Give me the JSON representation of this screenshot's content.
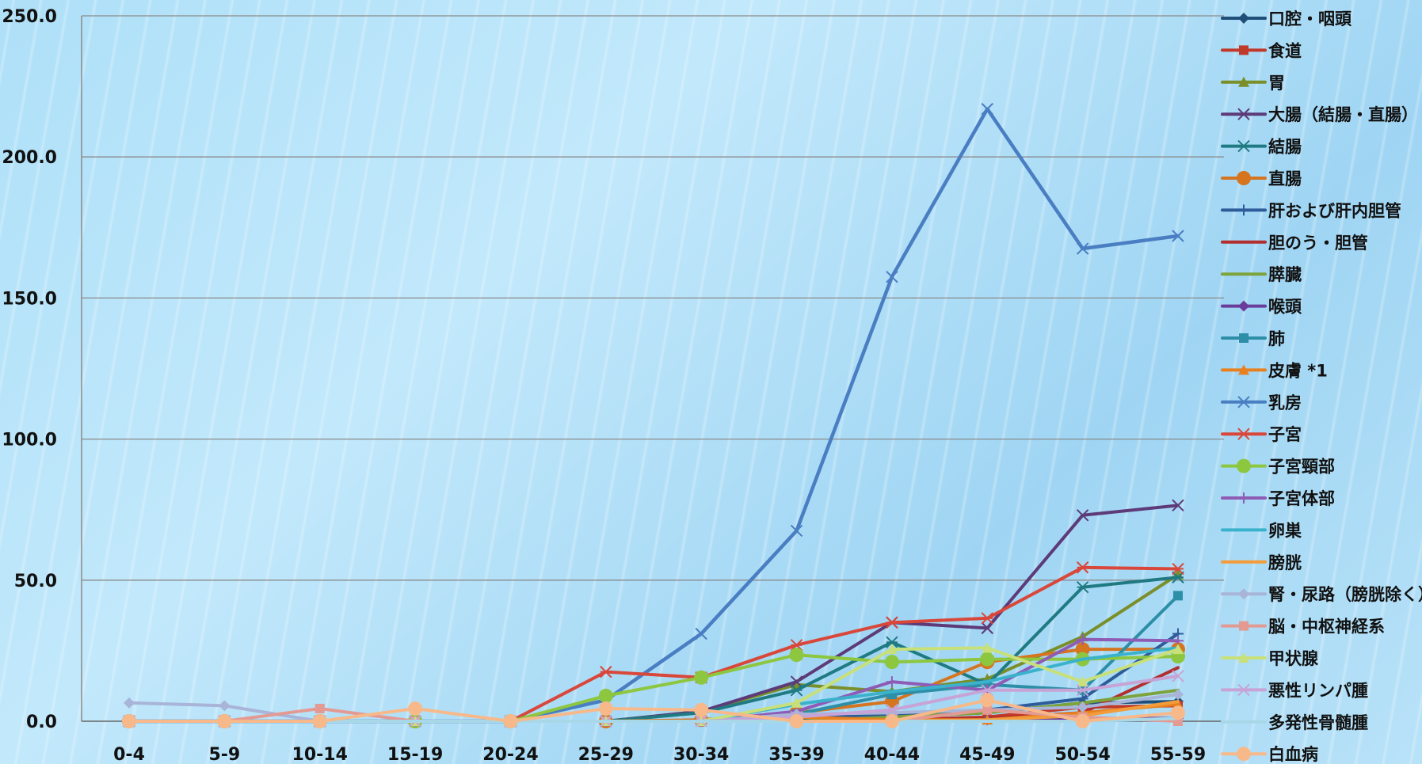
{
  "chart_data": {
    "type": "line",
    "title": "",
    "xlabel": "",
    "ylabel": "",
    "ylim": [
      0,
      250
    ],
    "yticks": [
      "0.0",
      "50.0",
      "100.0",
      "150.0",
      "200.0",
      "250.0"
    ],
    "grid": true,
    "legend_position": "right",
    "categories": [
      "0-4",
      "5-9",
      "10-14",
      "15-19",
      "20-24",
      "25-29",
      "30-34",
      "35-39",
      "40-44",
      "45-49",
      "50-54",
      "55-59"
    ],
    "series": [
      {
        "name": "口腔・咽頭",
        "color": "#1f4e79",
        "marker": "diamond",
        "values": [
          0,
          0,
          0,
          0,
          0,
          0,
          0,
          0.5,
          1.5,
          3,
          6.5,
          7
        ]
      },
      {
        "name": "食道",
        "color": "#c0392b",
        "marker": "square",
        "values": [
          0,
          0,
          0,
          0,
          0,
          0,
          0,
          0,
          0.5,
          1.5,
          5,
          5.5
        ]
      },
      {
        "name": "胃",
        "color": "#7a8f2a",
        "marker": "triangle",
        "values": [
          0,
          0,
          0,
          0,
          0,
          0,
          3.5,
          13,
          10.5,
          15,
          30,
          52
        ]
      },
      {
        "name": "大腸（結腸・直腸）",
        "color": "#5d3a78",
        "marker": "x",
        "values": [
          0,
          0,
          0,
          0,
          0,
          0,
          3.5,
          14,
          35,
          33,
          73,
          76.5
        ]
      },
      {
        "name": "結腸",
        "color": "#1f7a82",
        "marker": "star",
        "values": [
          0,
          0,
          0,
          0,
          0,
          0,
          3,
          11,
          28,
          13,
          47.5,
          51
        ]
      },
      {
        "name": "直腸",
        "color": "#d67520",
        "marker": "circle",
        "values": [
          0,
          0,
          0,
          0,
          0,
          0,
          0.5,
          3,
          7,
          21,
          25.5,
          25.5
        ]
      },
      {
        "name": "肝および肝内胆管",
        "color": "#2e5c9a",
        "marker": "plus",
        "values": [
          0,
          0,
          0,
          0,
          0,
          0,
          0,
          1.5,
          2,
          4,
          8,
          31
        ]
      },
      {
        "name": "胆のう・胆管",
        "color": "#b22f2f",
        "marker": "none",
        "values": [
          0,
          0,
          0,
          0,
          0,
          0,
          0,
          0,
          0.5,
          1,
          3,
          19
        ]
      },
      {
        "name": "膵臓",
        "color": "#7ea33c",
        "marker": "none",
        "values": [
          0,
          0,
          0,
          0,
          0,
          0,
          0,
          0,
          1.5,
          3,
          6.5,
          11
        ]
      },
      {
        "name": "喉頭",
        "color": "#6a3d9a",
        "marker": "diamond",
        "values": [
          0,
          0,
          0,
          0,
          0,
          0,
          0,
          0,
          0,
          0.5,
          1,
          1
        ]
      },
      {
        "name": "肺",
        "color": "#2d8fa7",
        "marker": "square",
        "values": [
          0,
          0,
          0,
          0,
          0,
          0,
          0,
          2.5,
          9.5,
          13,
          11,
          44.5
        ]
      },
      {
        "name": "皮膚 *1",
        "color": "#e8801f",
        "marker": "triangle",
        "values": [
          0,
          0,
          0,
          0,
          0,
          0,
          0,
          1.5,
          0.5,
          0.5,
          3,
          6
        ]
      },
      {
        "name": "乳房",
        "color": "#4a7ec2",
        "marker": "x",
        "values": [
          0,
          0,
          0,
          0,
          0,
          7.5,
          31,
          67.5,
          157.5,
          217,
          167.5,
          172
        ]
      },
      {
        "name": "子宮",
        "color": "#d9473a",
        "marker": "star",
        "values": [
          0,
          0,
          0,
          0,
          0,
          17.5,
          15.5,
          27,
          35,
          36.5,
          54.5,
          54
        ]
      },
      {
        "name": "子宮頸部",
        "color": "#8dc63f",
        "marker": "circle",
        "values": [
          0,
          0,
          0,
          0,
          0,
          9,
          15.5,
          23.5,
          21,
          22,
          22,
          23
        ]
      },
      {
        "name": "子宮体部",
        "color": "#8e5bb5",
        "marker": "plus",
        "values": [
          0,
          0,
          0,
          0,
          0,
          0,
          0,
          3.5,
          14,
          11,
          29,
          28.5
        ]
      },
      {
        "name": "卵巣",
        "color": "#3bb2cc",
        "marker": "none",
        "values": [
          0,
          0,
          0,
          0,
          0,
          0,
          0,
          6,
          10.5,
          14,
          22,
          26
        ]
      },
      {
        "name": "膀胱",
        "color": "#f39c3b",
        "marker": "none",
        "values": [
          0,
          0,
          0,
          0,
          0,
          0,
          0,
          0,
          0,
          0.5,
          2,
          7
        ]
      },
      {
        "name": "腎・尿路（膀胱除く）",
        "color": "#a8b4d8",
        "marker": "diamond",
        "values": [
          6.5,
          5.5,
          0,
          0,
          0,
          0,
          0,
          2.5,
          3,
          4,
          5,
          9.5
        ]
      },
      {
        "name": "脳・中枢神経系",
        "color": "#e39a93",
        "marker": "square",
        "values": [
          0,
          0,
          4.5,
          0,
          0,
          0,
          0,
          0,
          0,
          4,
          1.5,
          0
        ]
      },
      {
        "name": "甲状腺",
        "color": "#c8e07a",
        "marker": "triangle",
        "values": [
          0,
          0,
          0,
          0,
          0,
          0,
          0,
          6.5,
          25.5,
          26,
          14,
          25.5
        ]
      },
      {
        "name": "悪性リンパ腫",
        "color": "#c7a3d6",
        "marker": "x",
        "values": [
          0,
          0,
          0,
          0,
          0,
          0,
          0,
          1.5,
          4,
          11,
          11,
          16
        ]
      },
      {
        "name": "多発性骨髄腫",
        "color": "#a8d8e8",
        "marker": "none",
        "values": [
          0,
          0,
          0,
          0,
          0,
          0,
          0,
          0,
          0,
          0,
          0,
          1
        ]
      },
      {
        "name": "白血病",
        "color": "#f8b98a",
        "marker": "circle",
        "values": [
          0,
          0,
          0,
          4.5,
          0,
          4.5,
          4,
          0,
          0,
          7.5,
          0,
          3
        ]
      }
    ]
  }
}
